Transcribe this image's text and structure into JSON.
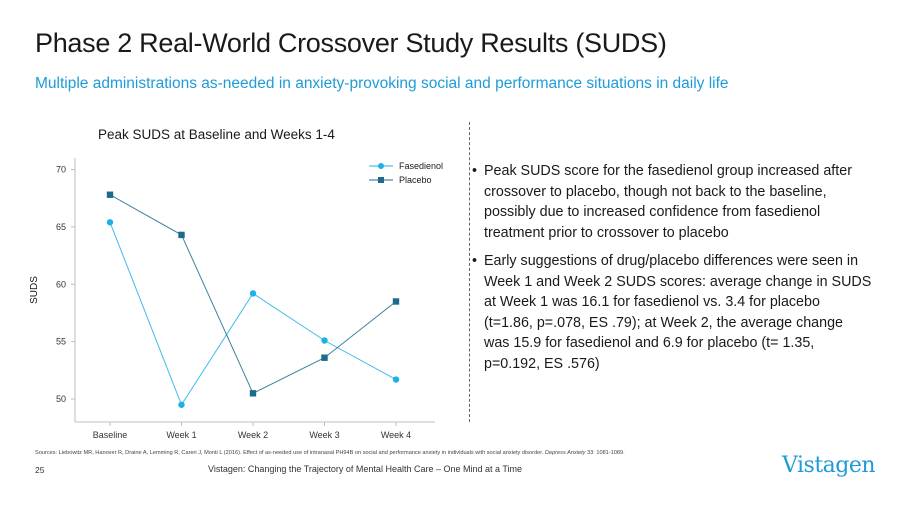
{
  "header": {
    "title": "Phase 2 Real-World Crossover Study Results (SUDS)",
    "subtitle": "Multiple administrations as-needed in anxiety-provoking social and performance situations in daily life"
  },
  "bullets": [
    "Peak SUDS score for the fasedienol group increased after crossover to placebo, though not back to the baseline, possibly due to increased confidence from fasedienol treatment prior to crossover to placebo",
    "Early suggestions of drug/placebo differences were seen in Week 1 and Week 2 SUDS scores: average change in SUDS at Week 1 was 16.1 for fasedienol vs. 3.4 for placebo (t=1.86, p=.078, ES .79); at Week 2, the average change was 15.9 for fasedienol and 6.9 for placebo (t= 1.35, p=0.192, ES .576)"
  ],
  "footer": {
    "sources_prefix": "Sources: Liebowitz MR, Hanover R, Draine A, Lemming R, Careri J, Monti L (2016). Effect of as-needed use of intranasal PH94B on social and performance anxiety in individuals with social anxiety disorder.",
    "sources_journal": "Depress Anxiety",
    "sources_suffix": "33: 1081-1089.",
    "page_number": "25",
    "tagline": "Vistagen: Changing the Trajectory of Mental Health Care – One Mind at a Time",
    "logo_text": "Vistagen"
  },
  "chart_data": {
    "type": "line",
    "title": "Peak SUDS at Baseline and Weeks 1-4",
    "xlabel": "",
    "ylabel": "SUDS",
    "categories": [
      "Baseline",
      "Week 1",
      "Week 2",
      "Week 3",
      "Week 4"
    ],
    "ylim": [
      48,
      71
    ],
    "yticks": [
      50,
      55,
      60,
      65,
      70
    ],
    "legend_position": "top-right",
    "grid": false,
    "series": [
      {
        "name": "Fasedienol",
        "values": [
          65.4,
          49.5,
          59.2,
          55.1,
          51.7
        ],
        "color": "#1eb0e6",
        "marker": "circle"
      },
      {
        "name": "Placebo",
        "values": [
          67.8,
          64.3,
          50.5,
          53.6,
          58.5
        ],
        "color": "#1c6b8c",
        "marker": "square"
      }
    ]
  }
}
